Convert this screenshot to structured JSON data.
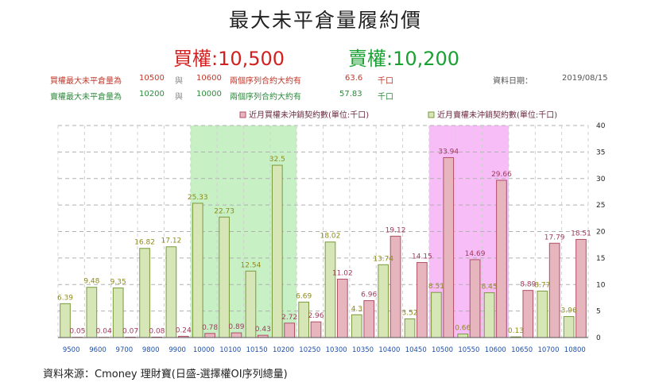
{
  "title": "最大未平倉量履約價",
  "call_label": "買權",
  "call_value": ":10,500",
  "put_label": "賣權",
  "put_value": ":10,200",
  "info": {
    "call_line": {
      "label": "買權最大未平倉量為",
      "strike_a": "10500",
      "conj": "與",
      "strike_b": "10600",
      "text": "兩個序列合約大約有",
      "value": "63.6",
      "unit": "千口"
    },
    "put_line": {
      "label": "賣權最大未平倉量為",
      "strike_a": "10200",
      "conj": "與",
      "strike_b": "10000",
      "text": "兩個序列合約大約有",
      "value": "57.83",
      "unit": "千口"
    },
    "date_label": "資料日期：",
    "date": "2019/08/15"
  },
  "source": "資料來源：Cmoney 理財寶(日盛-選擇權OI序列總量)",
  "colors": {
    "call_fill": "#e6b5bd",
    "call_stroke": "#b14f66",
    "call_label": "#a03a5c",
    "put_fill": "#d7e6b6",
    "put_stroke": "#7a9a3c",
    "put_label": "#8f8b18",
    "highlight_put": "#c7f0c5",
    "highlight_call": "#f7bdf7"
  },
  "chart_data": {
    "type": "bar",
    "categories": [
      "9500",
      "9600",
      "9700",
      "9800",
      "9900",
      "10000",
      "10100",
      "10150",
      "10200",
      "10250",
      "10300",
      "10350",
      "10400",
      "10450",
      "10500",
      "10550",
      "10600",
      "10650",
      "10700",
      "10800"
    ],
    "series": [
      {
        "name": "近月買權未沖銷契約數(單位:千口)",
        "values": [
          0.05,
          0.04,
          0.07,
          0.08,
          0.24,
          0.78,
          0.89,
          0.43,
          2.72,
          2.96,
          11.02,
          6.96,
          19.12,
          14.15,
          33.94,
          14.69,
          29.66,
          8.89,
          17.79,
          18.51
        ]
      },
      {
        "name": "近月賣權未沖銷契約數(單位:千口)",
        "values": [
          6.39,
          9.48,
          9.35,
          16.82,
          17.12,
          25.33,
          22.73,
          12.54,
          32.5,
          6.69,
          18.02,
          4.3,
          13.74,
          3.52,
          8.51,
          0.66,
          8.45,
          0.13,
          8.77,
          3.96
        ]
      }
    ],
    "yticks": [
      0,
      5,
      10,
      15,
      20,
      25,
      30,
      35,
      40
    ],
    "ylim": [
      0,
      40
    ],
    "grid": true,
    "legend": "top-right",
    "highlights": [
      {
        "from": "10000",
        "to": "10200",
        "series": "put"
      },
      {
        "from": "10500",
        "to": "10600",
        "series": "call"
      }
    ]
  }
}
